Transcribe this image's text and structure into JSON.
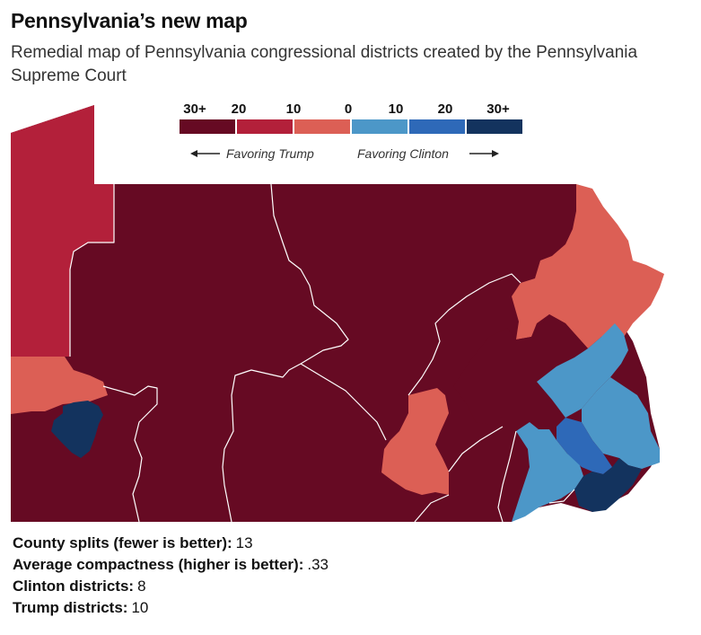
{
  "header": {
    "title": "Pennsylvania’s new map",
    "subtitle": "Remedial map of Pennsylvania congressional districts created by the Pennsylvania Supreme Court"
  },
  "legend": {
    "ticks": [
      "30+",
      "20",
      "10",
      "0",
      "10",
      "20",
      "30+"
    ],
    "swatches": [
      {
        "lean": "Trump +20 to +30 and above",
        "color": "#660a23"
      },
      {
        "lean": "Trump +10 to +20",
        "color": "#b3203a"
      },
      {
        "lean": "Trump 0 to +10",
        "color": "#dc5f55"
      },
      {
        "lean": "Clinton 0 to +10",
        "color": "#4c97c8"
      },
      {
        "lean": "Clinton +10 to +20",
        "color": "#2e69b8"
      },
      {
        "lean": "Clinton +20 to +30 and above",
        "color": "#13335e"
      }
    ],
    "trump_label": "Favoring Trump",
    "clinton_label": "Favoring Clinton"
  },
  "map": {
    "districts": [
      {
        "lean": "Trump +10 to +20",
        "color": "#b3203a"
      },
      {
        "lean": "Trump +20 to +30 and above",
        "color": "#660a23"
      },
      {
        "lean": "Trump 0 to +10",
        "color": "#dc5f55"
      },
      {
        "lean": "Clinton 0 to +10",
        "color": "#4c97c8"
      },
      {
        "lean": "Clinton +10 to +20",
        "color": "#2e69b8"
      },
      {
        "lean": "Clinton +20 to +30 and above",
        "color": "#13335e"
      }
    ]
  },
  "stats": [
    {
      "label": "County splits (fewer is better):",
      "value": "13"
    },
    {
      "label": "Average compactness (higher is better):",
      "value": ".33"
    },
    {
      "label": "Clinton districts:",
      "value": "8"
    },
    {
      "label": "Trump districts:",
      "value": "10"
    }
  ]
}
